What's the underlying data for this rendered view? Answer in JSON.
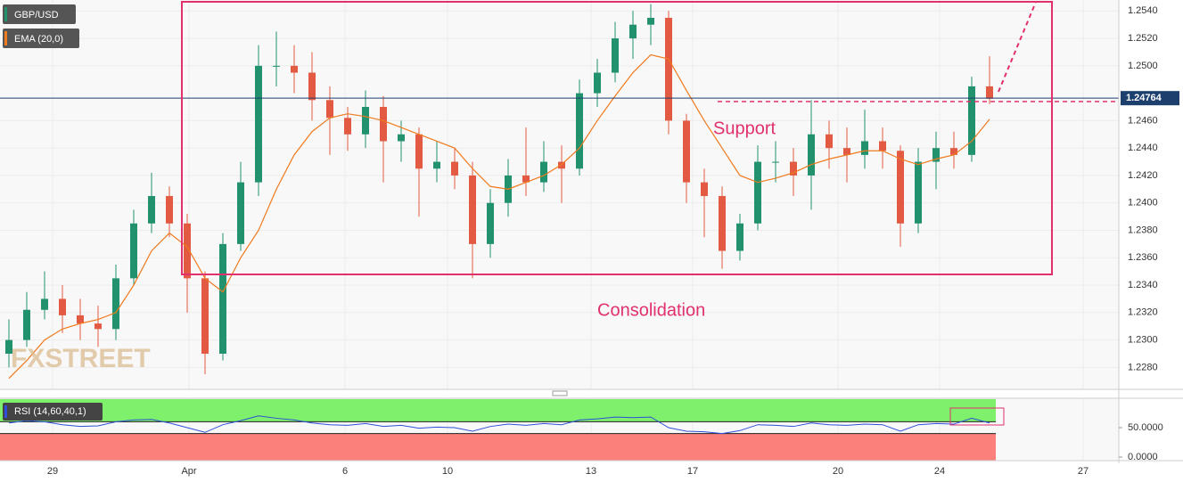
{
  "chart_data": [
    {
      "type": "candlestick",
      "title": "GBP/USD",
      "x": [
        0.5,
        1.5,
        2.5,
        3.5,
        4.5,
        5.5,
        6.5,
        7.5,
        8.5,
        9.5,
        10.5,
        11.5,
        12.5,
        13.5,
        14.5,
        15.5,
        16.5,
        17.5,
        18.5,
        19.5,
        20.5,
        21.5,
        22.5,
        23.5,
        24.5,
        25.5,
        26.5,
        27.5,
        28.5,
        29.5,
        30.5,
        31.5,
        32.5,
        33.5,
        34.5,
        35.5,
        36.5,
        37.5,
        38.5,
        39.5,
        40.5,
        41.5,
        42.5,
        43.5,
        44.5,
        45.5,
        46.5,
        47.5,
        48.5,
        49.5,
        50.5,
        51.5,
        52.5,
        53.5,
        54.5,
        55.5
      ],
      "open": [
        1.229,
        1.23,
        1.2322,
        1.233,
        1.2318,
        1.2312,
        1.2308,
        1.2345,
        1.2385,
        1.2405,
        1.2385,
        1.2345,
        1.229,
        1.237,
        1.2415,
        1.25,
        1.25,
        1.2495,
        1.2475,
        1.2462,
        1.245,
        1.247,
        1.2445,
        1.245,
        1.2425,
        1.243,
        1.242,
        1.237,
        1.24,
        1.242,
        1.2415,
        1.243,
        1.2425,
        1.248,
        1.2495,
        1.252,
        1.253,
        1.2535,
        1.246,
        1.2415,
        1.2405,
        1.2365,
        1.2385,
        1.243,
        1.243,
        1.242,
        1.245,
        1.244,
        1.2435,
        1.2445,
        1.2438,
        1.2385,
        1.243,
        1.244,
        1.2435,
        1.2485
      ],
      "high": [
        1.2315,
        1.2335,
        1.235,
        1.234,
        1.233,
        1.2325,
        1.2355,
        1.2395,
        1.2422,
        1.2412,
        1.2392,
        1.235,
        1.2378,
        1.243,
        1.2515,
        1.2525,
        1.2515,
        1.251,
        1.2485,
        1.247,
        1.2482,
        1.2478,
        1.246,
        1.2455,
        1.2445,
        1.244,
        1.243,
        1.241,
        1.2432,
        1.2455,
        1.2445,
        1.2442,
        1.249,
        1.2505,
        1.2532,
        1.254,
        1.2545,
        1.254,
        1.2465,
        1.2425,
        1.2412,
        1.2392,
        1.2442,
        1.2445,
        1.244,
        1.2475,
        1.246,
        1.2455,
        1.2468,
        1.2455,
        1.2442,
        1.244,
        1.2452,
        1.2452,
        1.2492,
        1.2507
      ],
      "low": [
        1.228,
        1.2295,
        1.2315,
        1.2305,
        1.23,
        1.2295,
        1.23,
        1.234,
        1.2378,
        1.2375,
        1.232,
        1.2275,
        1.2285,
        1.2365,
        1.2405,
        1.2485,
        1.248,
        1.246,
        1.2435,
        1.2438,
        1.244,
        1.2415,
        1.243,
        1.239,
        1.2415,
        1.241,
        1.2345,
        1.236,
        1.239,
        1.2405,
        1.2408,
        1.24,
        1.242,
        1.247,
        1.2488,
        1.2505,
        1.2515,
        1.245,
        1.24,
        1.2375,
        1.2352,
        1.2358,
        1.238,
        1.2415,
        1.2405,
        1.2395,
        1.2425,
        1.2415,
        1.2425,
        1.2425,
        1.2368,
        1.2378,
        1.241,
        1.2425,
        1.243,
        1.2472
      ],
      "close": [
        1.23,
        1.2322,
        1.233,
        1.2318,
        1.2312,
        1.2308,
        1.2345,
        1.2385,
        1.2405,
        1.2385,
        1.2345,
        1.229,
        1.237,
        1.2415,
        1.25,
        1.25,
        1.2495,
        1.2475,
        1.2462,
        1.245,
        1.247,
        1.2445,
        1.245,
        1.2425,
        1.243,
        1.242,
        1.237,
        1.24,
        1.242,
        1.2415,
        1.243,
        1.2425,
        1.248,
        1.2495,
        1.252,
        1.253,
        1.2535,
        1.246,
        1.2415,
        1.2405,
        1.2365,
        1.2385,
        1.243,
        1.243,
        1.242,
        1.245,
        1.244,
        1.2435,
        1.2445,
        1.2438,
        1.2385,
        1.243,
        1.244,
        1.2435,
        1.2485,
        1.2476
      ],
      "up_color": "#22916e",
      "down_color": "#e25a41",
      "ema": {
        "name": "EMA (20,0)",
        "color": "#f07a1e",
        "values": [
          1.2272,
          1.2285,
          1.23,
          1.2308,
          1.2312,
          1.2315,
          1.232,
          1.234,
          1.2365,
          1.2378,
          1.2368,
          1.2345,
          1.2335,
          1.236,
          1.238,
          1.241,
          1.2435,
          1.2452,
          1.2462,
          1.2465,
          1.2463,
          1.246,
          1.2455,
          1.245,
          1.2445,
          1.244,
          1.2425,
          1.2412,
          1.241,
          1.2415,
          1.242,
          1.2428,
          1.244,
          1.246,
          1.2478,
          1.2495,
          1.2508,
          1.2505,
          1.2482,
          1.246,
          1.244,
          1.242,
          1.2415,
          1.2418,
          1.2422,
          1.2428,
          1.2432,
          1.2435,
          1.2438,
          1.2438,
          1.2432,
          1.2428,
          1.2432,
          1.2435,
          1.2445,
          1.2461
        ]
      },
      "last_price": 1.24764,
      "last_price_color": "#1c3f6e",
      "xlim": [
        0,
        62.75
      ],
      "xticks": [
        {
          "value": 2.95,
          "label": "29"
        },
        {
          "value": 10.6,
          "label": "Apr"
        },
        {
          "value": 19.35,
          "label": "6"
        },
        {
          "value": 25.1,
          "label": "10"
        },
        {
          "value": 33.15,
          "label": "13"
        },
        {
          "value": 38.85,
          "label": "17"
        },
        {
          "value": 47,
          "label": "20"
        },
        {
          "value": 52.7,
          "label": "24"
        },
        {
          "value": 60.75,
          "label": "27"
        }
      ],
      "ylim": [
        1.2264,
        1.2548
      ],
      "yticks": [
        {
          "value": 1.228,
          "label": "1.2280"
        },
        {
          "value": 1.23,
          "label": "1.2300"
        },
        {
          "value": 1.232,
          "label": "1.2320"
        },
        {
          "value": 1.234,
          "label": "1.2340"
        },
        {
          "value": 1.236,
          "label": "1.2360"
        },
        {
          "value": 1.238,
          "label": "1.2380"
        },
        {
          "value": 1.24,
          "label": "1.2400"
        },
        {
          "value": 1.242,
          "label": "1.2420"
        },
        {
          "value": 1.244,
          "label": "1.2440"
        },
        {
          "value": 1.246,
          "label": "1.2460"
        },
        {
          "value": 1.25,
          "label": "1.2500"
        },
        {
          "value": 1.252,
          "label": "1.2520"
        },
        {
          "value": 1.254,
          "label": "1.2540"
        }
      ],
      "grid": true,
      "annotations": {
        "support": "Support",
        "consolidation": "Consolidation"
      },
      "watermark": "FXSTREET"
    },
    {
      "type": "line",
      "title": "RSI (14,60,40,1)",
      "color": "#2f4fd8",
      "values": [
        58,
        62,
        60,
        55,
        52,
        53,
        60,
        63,
        64,
        58,
        50,
        42,
        55,
        62,
        70,
        66,
        63,
        58,
        55,
        54,
        57,
        52,
        54,
        49,
        51,
        50,
        44,
        52,
        56,
        54,
        57,
        55,
        63,
        65,
        68,
        67,
        68,
        50,
        44,
        43,
        40,
        45,
        55,
        54,
        52,
        58,
        55,
        54,
        56,
        55,
        44,
        55,
        57,
        56,
        66,
        58
      ],
      "levels": [
        60,
        40
      ],
      "upper_color": "#7ef06c",
      "lower_color": "#fb7f7b",
      "ylim": [
        0,
        100
      ],
      "yticks": [
        {
          "value": 0,
          "label": "0.0000"
        },
        {
          "value": 50,
          "label": "50.0000"
        }
      ]
    }
  ]
}
